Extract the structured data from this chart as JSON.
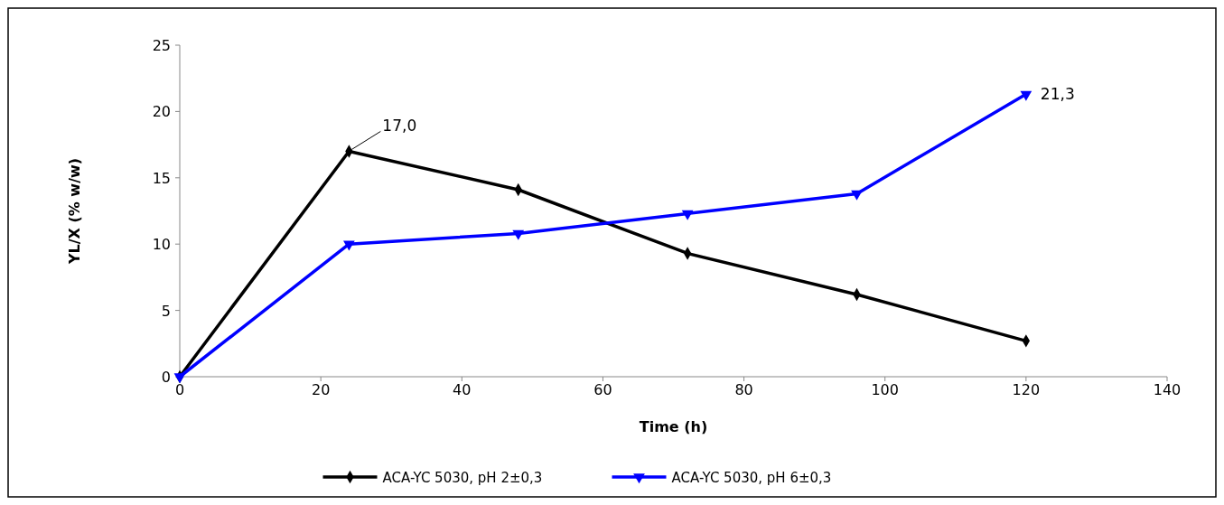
{
  "chart_data": {
    "type": "line",
    "xlabel": "Time (h)",
    "ylabel": "YL/X (% w/w)",
    "xlim": [
      0,
      140
    ],
    "xticks": [
      0,
      20,
      40,
      60,
      80,
      100,
      120,
      140
    ],
    "ylim": [
      0,
      25
    ],
    "yticks": [
      0,
      5,
      10,
      15,
      20,
      25
    ],
    "grid": false,
    "legend": "bottom",
    "line_style": "solid",
    "series": [
      {
        "name": "ACA-YC 5030, pH 2±0,3",
        "color": "#000000",
        "marker": "diamond",
        "x": [
          0,
          24,
          48,
          72,
          96,
          120
        ],
        "values": [
          0,
          17.0,
          14.1,
          9.3,
          6.2,
          2.7
        ]
      },
      {
        "name": "ACA-YC 5030, pH 6±0,3",
        "color": "#0000ff",
        "marker": "triangle",
        "x": [
          0,
          24,
          48,
          72,
          96,
          120
        ],
        "values": [
          0,
          10.0,
          10.8,
          12.3,
          13.8,
          21.3
        ]
      }
    ],
    "annotations": [
      {
        "text": "17,0",
        "x": 24,
        "y": 17.0
      },
      {
        "text": "21,3",
        "x": 120,
        "y": 21.3
      }
    ]
  }
}
